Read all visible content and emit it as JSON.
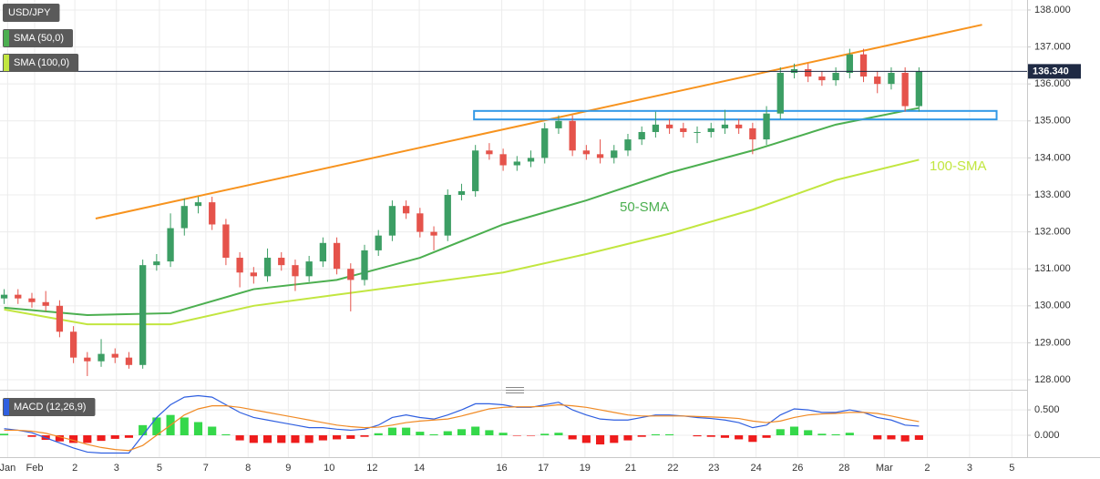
{
  "chart_data": [
    {
      "type": "candlestick",
      "name": "USD/JPY",
      "x": [
        0,
        1,
        2,
        3,
        4,
        5,
        6,
        7,
        8,
        9,
        10,
        11,
        12,
        13,
        14,
        15,
        16,
        17,
        18,
        19,
        20,
        21,
        22,
        23,
        24,
        25,
        26,
        27,
        28,
        29,
        30,
        31,
        32,
        33,
        34,
        35,
        36,
        37,
        38,
        39,
        40,
        41,
        42,
        43,
        44,
        45,
        46,
        47,
        48,
        49,
        50,
        51,
        52,
        53,
        54,
        55,
        56,
        57,
        58,
        59,
        60,
        61,
        62,
        63,
        64,
        65,
        66
      ],
      "open": [
        130.2,
        130.3,
        130.2,
        130.1,
        130.0,
        129.3,
        128.6,
        128.5,
        128.7,
        128.6,
        128.4,
        131.1,
        131.2,
        132.1,
        132.7,
        132.8,
        132.2,
        131.3,
        130.9,
        130.8,
        131.3,
        131.1,
        130.8,
        131.2,
        131.7,
        131.0,
        130.7,
        131.5,
        131.9,
        132.7,
        132.5,
        132.0,
        131.9,
        133.0,
        133.1,
        134.2,
        134.1,
        133.8,
        133.9,
        134.0,
        134.8,
        135.0,
        134.2,
        134.1,
        134.0,
        134.2,
        134.5,
        134.7,
        134.9,
        134.8,
        134.7,
        134.7,
        134.8,
        134.9,
        134.8,
        134.5,
        135.2,
        136.3,
        136.4,
        136.2,
        136.1,
        136.3,
        136.8,
        136.2,
        136.0,
        136.3,
        135.4
      ],
      "high": [
        130.45,
        130.45,
        130.35,
        130.4,
        130.15,
        129.45,
        128.75,
        129.1,
        128.85,
        128.75,
        131.25,
        131.4,
        132.5,
        132.9,
        132.95,
        132.95,
        132.35,
        131.45,
        131.05,
        131.55,
        131.45,
        131.25,
        131.35,
        131.85,
        131.85,
        131.15,
        131.65,
        132.05,
        132.85,
        132.85,
        132.65,
        132.15,
        133.15,
        133.3,
        134.35,
        134.4,
        134.25,
        134.05,
        134.2,
        134.95,
        135.15,
        135.15,
        134.35,
        134.5,
        134.35,
        134.65,
        134.85,
        135.25,
        135.05,
        134.95,
        134.85,
        134.95,
        135.3,
        135.05,
        134.95,
        135.4,
        136.45,
        136.55,
        136.55,
        136.35,
        136.45,
        136.95,
        136.95,
        136.35,
        136.45,
        136.45,
        136.45
      ],
      "low": [
        130.05,
        130.05,
        129.95,
        129.85,
        129.15,
        128.45,
        128.1,
        128.35,
        128.45,
        128.3,
        128.3,
        130.95,
        131.05,
        131.9,
        132.5,
        132.05,
        131.1,
        130.5,
        130.6,
        130.65,
        130.95,
        130.4,
        130.65,
        131.05,
        130.85,
        129.85,
        130.55,
        131.35,
        131.75,
        132.35,
        131.85,
        131.5,
        131.75,
        132.85,
        132.95,
        133.95,
        133.65,
        133.65,
        133.75,
        133.85,
        134.65,
        134.05,
        133.95,
        133.85,
        133.85,
        134.05,
        134.35,
        134.55,
        134.65,
        134.55,
        134.4,
        134.55,
        134.65,
        134.65,
        134.1,
        134.35,
        135.05,
        136.15,
        136.05,
        135.95,
        135.95,
        136.15,
        136.05,
        135.75,
        135.85,
        135.25,
        135.25
      ],
      "close": [
        130.3,
        130.2,
        130.1,
        130.0,
        129.3,
        128.6,
        128.5,
        128.7,
        128.6,
        128.4,
        131.1,
        131.2,
        132.1,
        132.7,
        132.8,
        132.2,
        131.3,
        130.9,
        130.8,
        131.3,
        131.1,
        130.8,
        131.2,
        131.7,
        131.0,
        130.7,
        131.5,
        131.9,
        132.7,
        132.5,
        132.0,
        131.9,
        133.0,
        133.1,
        134.2,
        134.1,
        133.8,
        133.9,
        134.0,
        134.8,
        135.0,
        134.2,
        134.1,
        134.0,
        134.2,
        134.5,
        134.7,
        134.9,
        134.8,
        134.7,
        134.7,
        134.8,
        134.9,
        134.8,
        134.5,
        135.2,
        136.3,
        136.4,
        136.2,
        136.1,
        136.3,
        136.8,
        136.2,
        136.0,
        136.3,
        135.4,
        136.34
      ],
      "up_color": "#3c9e64",
      "down_color": "#e5534b",
      "overlays": [
        {
          "name": "SMA (50,0)",
          "label": "50-SMA",
          "color": "#4caf50",
          "x": [
            0,
            6,
            12,
            18,
            24,
            30,
            36,
            42,
            48,
            54,
            60,
            66
          ],
          "values": [
            129.95,
            129.75,
            129.8,
            130.45,
            130.7,
            131.3,
            132.2,
            132.85,
            133.6,
            134.2,
            134.9,
            135.35
          ]
        },
        {
          "name": "SMA (100,0)",
          "label": "100-SMA",
          "color": "#c2e640",
          "x": [
            0,
            6,
            12,
            18,
            24,
            30,
            36,
            42,
            48,
            54,
            60,
            66
          ],
          "values": [
            129.9,
            129.5,
            129.5,
            130.0,
            130.3,
            130.6,
            130.9,
            131.4,
            131.95,
            132.6,
            133.4,
            133.95
          ]
        }
      ],
      "trendline": {
        "color": "#f7931e",
        "x": [
          6.6,
          70.55
        ],
        "y": [
          132.36,
          137.6
        ]
      },
      "zone": {
        "color": "#3399e6",
        "x": [
          33.9,
          71.6
        ],
        "y": [
          135.04,
          135.27
        ]
      },
      "current_price": {
        "value": 136.34,
        "label": "136.340"
      },
      "xlim": [
        -0.3,
        73.8
      ],
      "ylim": [
        127.73,
        138.27
      ],
      "yticks": [
        {
          "value": 128,
          "label": "128.000"
        },
        {
          "value": 129,
          "label": "129.000"
        },
        {
          "value": 130,
          "label": "130.000"
        },
        {
          "value": 131,
          "label": "131.000"
        },
        {
          "value": 132,
          "label": "132.000"
        },
        {
          "value": 133,
          "label": "133.000"
        },
        {
          "value": 134,
          "label": "134.000"
        },
        {
          "value": 135,
          "label": "135.000"
        },
        {
          "value": 136,
          "label": "136.000"
        },
        {
          "value": 137,
          "label": "137.000"
        },
        {
          "value": 138,
          "label": "138.000"
        }
      ],
      "grid": true
    },
    {
      "type": "macd",
      "title": "MACD (12,26,9)",
      "x": [
        0,
        1,
        2,
        3,
        4,
        5,
        6,
        7,
        8,
        9,
        10,
        11,
        12,
        13,
        14,
        15,
        16,
        17,
        18,
        19,
        20,
        21,
        22,
        23,
        24,
        25,
        26,
        27,
        28,
        29,
        30,
        31,
        32,
        33,
        34,
        35,
        36,
        37,
        38,
        39,
        40,
        41,
        42,
        43,
        44,
        45,
        46,
        47,
        48,
        49,
        50,
        51,
        52,
        53,
        54,
        55,
        56,
        57,
        58,
        59,
        60,
        61,
        62,
        63,
        64,
        65,
        66
      ],
      "macd": {
        "color": "#2f5fe0",
        "values": [
          0.13,
          0.1,
          0.05,
          -0.05,
          -0.15,
          -0.25,
          -0.33,
          -0.35,
          -0.35,
          -0.35,
          0.0,
          0.35,
          0.6,
          0.75,
          0.78,
          0.75,
          0.6,
          0.45,
          0.35,
          0.3,
          0.25,
          0.2,
          0.15,
          0.15,
          0.12,
          0.1,
          0.12,
          0.2,
          0.35,
          0.4,
          0.35,
          0.32,
          0.4,
          0.5,
          0.62,
          0.62,
          0.6,
          0.55,
          0.55,
          0.6,
          0.65,
          0.5,
          0.4,
          0.32,
          0.3,
          0.3,
          0.35,
          0.4,
          0.4,
          0.38,
          0.35,
          0.33,
          0.3,
          0.25,
          0.15,
          0.2,
          0.4,
          0.52,
          0.5,
          0.45,
          0.45,
          0.5,
          0.45,
          0.35,
          0.3,
          0.2,
          0.18
        ]
      },
      "signal": {
        "color": "#f08a24",
        "values": [
          0.1,
          0.1,
          0.08,
          0.04,
          -0.03,
          -0.1,
          -0.18,
          -0.24,
          -0.28,
          -0.3,
          -0.2,
          0.0,
          0.2,
          0.4,
          0.52,
          0.58,
          0.58,
          0.55,
          0.5,
          0.45,
          0.4,
          0.35,
          0.3,
          0.25,
          0.2,
          0.17,
          0.15,
          0.16,
          0.2,
          0.25,
          0.28,
          0.3,
          0.32,
          0.38,
          0.45,
          0.52,
          0.55,
          0.56,
          0.56,
          0.57,
          0.6,
          0.58,
          0.55,
          0.5,
          0.45,
          0.4,
          0.38,
          0.38,
          0.38,
          0.38,
          0.37,
          0.36,
          0.35,
          0.33,
          0.28,
          0.25,
          0.28,
          0.35,
          0.4,
          0.42,
          0.43,
          0.45,
          0.45,
          0.43,
          0.38,
          0.32,
          0.27
        ]
      },
      "histogram": {
        "pos_color": "#35d84a",
        "neg_color": "#ee1c1c",
        "values": [
          0.03,
          0.0,
          -0.03,
          -0.09,
          -0.12,
          -0.15,
          -0.15,
          -0.11,
          -0.07,
          -0.05,
          0.2,
          0.35,
          0.4,
          0.35,
          0.26,
          0.17,
          0.02,
          -0.1,
          -0.15,
          -0.15,
          -0.15,
          -0.15,
          -0.15,
          -0.1,
          -0.08,
          -0.07,
          -0.03,
          0.04,
          0.15,
          0.15,
          0.07,
          0.02,
          0.08,
          0.12,
          0.17,
          0.1,
          0.05,
          -0.01,
          -0.01,
          0.03,
          0.05,
          -0.08,
          -0.15,
          -0.18,
          -0.15,
          -0.1,
          -0.03,
          0.02,
          0.02,
          0.0,
          -0.02,
          -0.03,
          -0.05,
          -0.08,
          -0.13,
          -0.05,
          0.12,
          0.17,
          0.1,
          0.03,
          0.02,
          0.05,
          0.0,
          -0.08,
          -0.08,
          -0.12,
          -0.09
        ]
      },
      "xlim": [
        -0.3,
        73.8
      ],
      "ylim": [
        -0.43,
        0.86
      ],
      "yticks": [
        {
          "value": 0,
          "label": "0.000"
        },
        {
          "value": 0.5,
          "label": "0.500"
        }
      ],
      "xticks": [
        {
          "value": 0.25,
          "label": "Jan"
        },
        {
          "value": 2.2,
          "label": "Feb"
        },
        {
          "value": 5.1,
          "label": "2"
        },
        {
          "value": 8.1,
          "label": "3"
        },
        {
          "value": 11.2,
          "label": "5"
        },
        {
          "value": 14.55,
          "label": "7"
        },
        {
          "value": 17.6,
          "label": "8"
        },
        {
          "value": 20.5,
          "label": "9"
        },
        {
          "value": 23.45,
          "label": "10"
        },
        {
          "value": 26.55,
          "label": "12"
        },
        {
          "value": 29.95,
          "label": "14"
        },
        {
          "value": 35.9,
          "label": "16"
        },
        {
          "value": 38.9,
          "label": "17"
        },
        {
          "value": 41.9,
          "label": "19"
        },
        {
          "value": 45.2,
          "label": "21"
        },
        {
          "value": 48.25,
          "label": "22"
        },
        {
          "value": 51.2,
          "label": "23"
        },
        {
          "value": 54.25,
          "label": "24"
        },
        {
          "value": 57.25,
          "label": "26"
        },
        {
          "value": 60.6,
          "label": "28"
        },
        {
          "value": 63.5,
          "label": "Mar"
        },
        {
          "value": 66.6,
          "label": "2"
        },
        {
          "value": 69.65,
          "label": "3"
        },
        {
          "value": 72.7,
          "label": "5"
        }
      ],
      "grid": true
    }
  ]
}
